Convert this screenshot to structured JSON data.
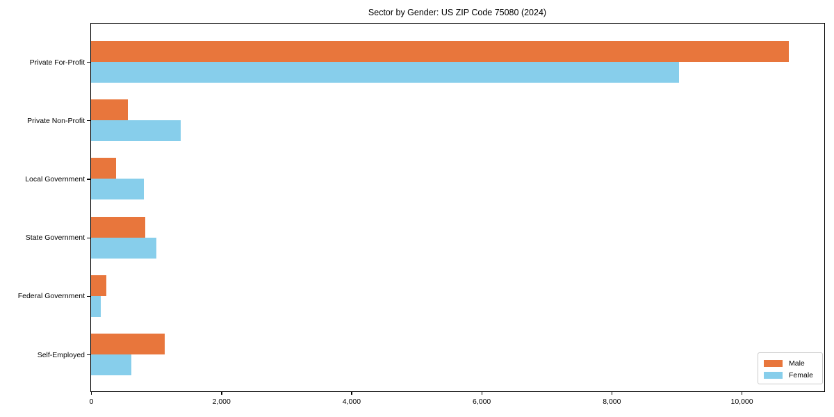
{
  "title": "Sector by Gender: US ZIP Code 75080 (2024)",
  "chart_data": {
    "type": "bar",
    "orientation": "horizontal",
    "title": "Sector by Gender: US ZIP Code 75080 (2024)",
    "categories": [
      "Private For-Profit",
      "Private Non-Profit",
      "Local Government",
      "State Government",
      "Federal Government",
      "Self-Employed"
    ],
    "series": [
      {
        "name": "Male",
        "color": "#e8763c",
        "values": [
          10725,
          565,
          385,
          830,
          235,
          1130
        ]
      },
      {
        "name": "Female",
        "color": "#87ceeb",
        "values": [
          9040,
          1375,
          810,
          1000,
          150,
          620
        ]
      }
    ],
    "xlabel": "",
    "ylabel": "",
    "xlim": [
      0,
      11260
    ],
    "xticks": {
      "values": [
        0,
        2000,
        4000,
        6000,
        8000,
        10000
      ],
      "labels": [
        "0",
        "2,000",
        "4,000",
        "6,000",
        "8,000",
        "10,000"
      ]
    },
    "grid": false,
    "legend_position": "lower right",
    "legend_labels": [
      "Male",
      "Female"
    ]
  }
}
